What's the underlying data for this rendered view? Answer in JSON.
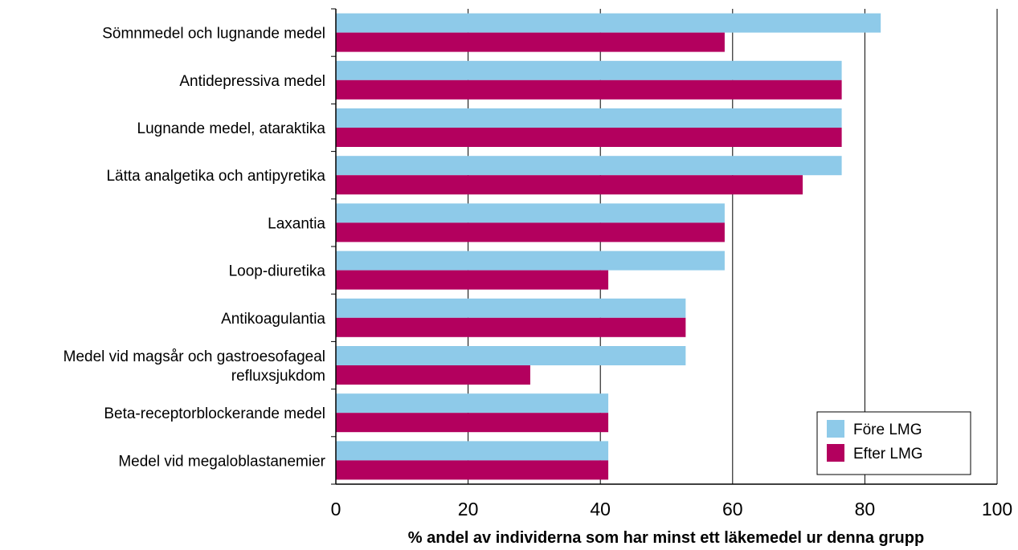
{
  "chart_data": {
    "type": "bar",
    "orientation": "horizontal",
    "categories": [
      [
        "Sömnmedel och lugnande medel"
      ],
      [
        "Antidepressiva medel"
      ],
      [
        "Lugnande medel, ataraktika"
      ],
      [
        "Lätta analgetika och antipyretika"
      ],
      [
        "Laxantia"
      ],
      [
        "Loop-diuretika"
      ],
      [
        "Antikoagulantia"
      ],
      [
        "Medel vid magsår och gastroesofageal",
        "refluxsjukdom"
      ],
      [
        "Beta-receptorblockerande medel"
      ],
      [
        "Medel vid megaloblastanemier"
      ]
    ],
    "series": [
      {
        "name": "Före LMG",
        "color": "#8ecae9",
        "values": [
          82.4,
          76.5,
          76.5,
          76.5,
          58.8,
          58.8,
          52.9,
          52.9,
          41.2,
          41.2
        ]
      },
      {
        "name": "Efter LMG",
        "color": "#b3005e",
        "values": [
          58.8,
          76.5,
          76.5,
          70.6,
          58.8,
          41.2,
          52.9,
          29.4,
          41.2,
          41.2
        ]
      }
    ],
    "xlabel": "% andel av individerna som har minst ett läkemedel ur denna grupp",
    "xlim": [
      0,
      100
    ],
    "xticks": [
      "0",
      "20",
      "40",
      "60",
      "80",
      "100"
    ],
    "grid": "vertical",
    "legend": "bottom-right"
  }
}
